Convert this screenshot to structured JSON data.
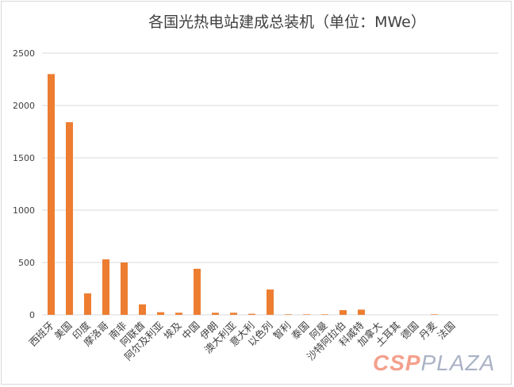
{
  "chart_data": {
    "type": "bar",
    "title": "各国光热电站建成总装机（单位：MWe）",
    "categories": [
      "西班牙",
      "美国",
      "印度",
      "摩洛哥",
      "南非",
      "阿联酋",
      "阿尔及利亚",
      "埃及",
      "中国",
      "伊朗",
      "澳大利亚",
      "意大利",
      "以色列",
      "智利",
      "泰国",
      "阿曼",
      "沙特阿拉伯",
      "科威特",
      "加拿大",
      "土耳其",
      "德国",
      "丹麦",
      "法国"
    ],
    "values": [
      2300,
      1840,
      205,
      530,
      500,
      100,
      25,
      20,
      440,
      20,
      20,
      10,
      242,
      5,
      5,
      5,
      45,
      50,
      0,
      0,
      0,
      5,
      0
    ],
    "ylim": [
      0,
      2500
    ],
    "yticks": [
      0,
      500,
      1000,
      1500,
      2000,
      2500
    ],
    "grid": true,
    "color": "#ed7d31"
  },
  "watermark": {
    "part1": "CSP",
    "part2": "PLAZA"
  }
}
